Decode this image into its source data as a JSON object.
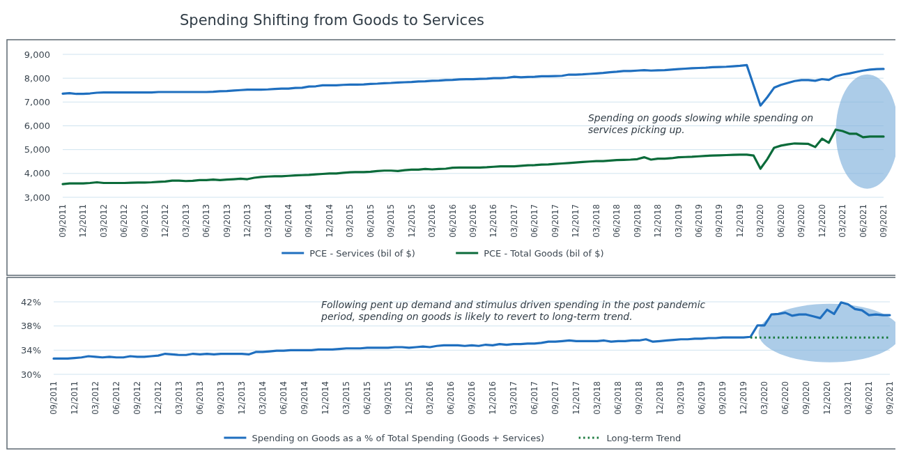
{
  "chart_data": [
    {
      "type": "line",
      "title": "Spending Shifting from Goods to Services",
      "categories": [
        "09/2011",
        null,
        null,
        "12/2011",
        null,
        null,
        "03/2012",
        null,
        null,
        "06/2012",
        null,
        null,
        "09/2012",
        null,
        null,
        "12/2012",
        null,
        null,
        "03/2013",
        null,
        null,
        "06/2013",
        null,
        null,
        "09/2013",
        null,
        null,
        "12/2013",
        null,
        null,
        "03/2014",
        null,
        null,
        "06/2014",
        null,
        null,
        "09/2014",
        null,
        null,
        "12/2014",
        null,
        null,
        "03/2015",
        null,
        null,
        "06/2015",
        null,
        null,
        "09/2015",
        null,
        null,
        "12/2015",
        null,
        null,
        "03/2016",
        null,
        null,
        "06/2016",
        null,
        null,
        "09/2016",
        null,
        null,
        "12/2016",
        null,
        null,
        "03/2017",
        null,
        null,
        "06/2017",
        null,
        null,
        "09/2017",
        null,
        null,
        "12/2017",
        null,
        null,
        "03/2018",
        null,
        null,
        "06/2018",
        null,
        null,
        "09/2018",
        null,
        null,
        "12/2018",
        null,
        null,
        "03/2019",
        null,
        null,
        "06/2019",
        null,
        null,
        "09/2019",
        null,
        null,
        "12/2019",
        null,
        null,
        "03/2020",
        null,
        null,
        "06/2020",
        null,
        null,
        "09/2020",
        null,
        null,
        "12/2020",
        null,
        null,
        "03/2021",
        null,
        null,
        "06/2021",
        null,
        null,
        "09/2021"
      ],
      "series": [
        {
          "name": "PCE - Services (bil of $)",
          "color": "#1f6fbf",
          "values": [
            7350,
            7370,
            7340,
            7340,
            7360,
            7390,
            7400,
            7400,
            7400,
            7400,
            7400,
            7400,
            7400,
            7400,
            7420,
            7420,
            7420,
            7420,
            7420,
            7420,
            7420,
            7420,
            7430,
            7450,
            7460,
            7480,
            7500,
            7520,
            7520,
            7520,
            7530,
            7550,
            7560,
            7560,
            7590,
            7600,
            7650,
            7660,
            7700,
            7700,
            7700,
            7720,
            7730,
            7730,
            7740,
            7760,
            7770,
            7790,
            7800,
            7820,
            7830,
            7840,
            7860,
            7870,
            7890,
            7900,
            7920,
            7930,
            7950,
            7960,
            7960,
            7970,
            7980,
            8000,
            8000,
            8020,
            8060,
            8040,
            8050,
            8060,
            8080,
            8080,
            8090,
            8100,
            8150,
            8150,
            8160,
            8180,
            8200,
            8220,
            8250,
            8270,
            8300,
            8300,
            8320,
            8340,
            8320,
            8330,
            8340,
            8360,
            8380,
            8400,
            8420,
            8430,
            8440,
            8460,
            8470,
            8480,
            8500,
            8520,
            8550,
            7700,
            6850,
            7200,
            7600,
            7720,
            7800,
            7880,
            7920,
            7920,
            7890,
            7960,
            7930,
            8080,
            8150,
            8200,
            8260,
            8320,
            8360,
            8380,
            8390
          ]
        },
        {
          "name": "PCE - Total Goods (bil of $)",
          "color": "#0b6b3a",
          "values": [
            3550,
            3580,
            3580,
            3580,
            3600,
            3630,
            3600,
            3600,
            3600,
            3600,
            3610,
            3620,
            3620,
            3630,
            3650,
            3660,
            3700,
            3700,
            3680,
            3690,
            3720,
            3720,
            3740,
            3720,
            3740,
            3760,
            3780,
            3760,
            3820,
            3850,
            3870,
            3880,
            3880,
            3900,
            3920,
            3930,
            3940,
            3960,
            3980,
            4000,
            4000,
            4030,
            4050,
            4060,
            4060,
            4070,
            4100,
            4120,
            4120,
            4100,
            4140,
            4160,
            4160,
            4190,
            4170,
            4190,
            4200,
            4240,
            4250,
            4250,
            4250,
            4250,
            4260,
            4280,
            4300,
            4300,
            4300,
            4320,
            4340,
            4350,
            4370,
            4380,
            4400,
            4420,
            4440,
            4460,
            4480,
            4500,
            4520,
            4520,
            4540,
            4560,
            4570,
            4580,
            4600,
            4680,
            4580,
            4620,
            4620,
            4640,
            4680,
            4690,
            4700,
            4720,
            4740,
            4750,
            4760,
            4770,
            4780,
            4790,
            4790,
            4750,
            4200,
            4600,
            5080,
            5170,
            5220,
            5260,
            5250,
            5240,
            5110,
            5460,
            5290,
            5840,
            5780,
            5670,
            5670,
            5520,
            5550,
            5550,
            5550
          ]
        }
      ],
      "ylim": [
        3000,
        9000
      ],
      "yticks": [
        {
          "value": 3000,
          "label": "3,000"
        },
        {
          "value": 4000,
          "label": "4,000"
        },
        {
          "value": 5000,
          "label": "5,000"
        },
        {
          "value": 6000,
          "label": "6,000"
        },
        {
          "value": 7000,
          "label": "7,000"
        },
        {
          "value": 8000,
          "label": "8,000"
        },
        {
          "value": 9000,
          "label": "9,000"
        }
      ],
      "grid": "y",
      "legend": "bottom",
      "annotations": [
        "Spending on goods slowing while spending on services picking up."
      ]
    },
    {
      "type": "line",
      "categories": [
        "09/2011",
        null,
        null,
        "12/2011",
        null,
        null,
        "03/2012",
        null,
        null,
        "06/2012",
        null,
        null,
        "09/2012",
        null,
        null,
        "12/2012",
        null,
        null,
        "03/2013",
        null,
        null,
        "06/2013",
        null,
        null,
        "09/2013",
        null,
        null,
        "12/2013",
        null,
        null,
        "03/2014",
        null,
        null,
        "06/2014",
        null,
        null,
        "09/2014",
        null,
        null,
        "12/2014",
        null,
        null,
        "03/2015",
        null,
        null,
        "06/2015",
        null,
        null,
        "09/2015",
        null,
        null,
        "12/2015",
        null,
        null,
        "03/2016",
        null,
        null,
        "06/2016",
        null,
        null,
        "09/2016",
        null,
        null,
        "12/2016",
        null,
        null,
        "03/2017",
        null,
        null,
        "06/2017",
        null,
        null,
        "09/2017",
        null,
        null,
        "12/2017",
        null,
        null,
        "03/2018",
        null,
        null,
        "06/2018",
        null,
        null,
        "09/2018",
        null,
        null,
        "12/2018",
        null,
        null,
        "03/2019",
        null,
        null,
        "06/2019",
        null,
        null,
        "09/2019",
        null,
        null,
        "12/2019",
        null,
        null,
        "03/2020",
        null,
        null,
        "06/2020",
        null,
        null,
        "09/2020",
        null,
        null,
        "12/2020",
        null,
        null,
        "03/2021",
        null,
        null,
        "06/2021",
        null,
        null,
        "09/2021"
      ],
      "series": [
        {
          "name": "Spending on Goods as a % of Total Spending (Goods + Services)",
          "color": "#1f6fbf",
          "line_style": "solid",
          "values": [
            32.6,
            32.6,
            32.6,
            32.7,
            32.8,
            33.0,
            32.9,
            32.8,
            32.9,
            32.8,
            32.8,
            33.0,
            32.9,
            32.9,
            33.0,
            33.1,
            33.4,
            33.3,
            33.2,
            33.2,
            33.4,
            33.3,
            33.4,
            33.3,
            33.4,
            33.4,
            33.4,
            33.4,
            33.3,
            33.7,
            33.7,
            33.8,
            33.9,
            33.9,
            34.0,
            34.0,
            34.0,
            34.0,
            34.1,
            34.1,
            34.1,
            34.2,
            34.3,
            34.3,
            34.3,
            34.4,
            34.4,
            34.4,
            34.4,
            34.5,
            34.5,
            34.4,
            34.5,
            34.6,
            34.5,
            34.7,
            34.8,
            34.8,
            34.8,
            34.7,
            34.8,
            34.7,
            34.9,
            34.8,
            35.0,
            34.9,
            35.0,
            35.0,
            35.1,
            35.1,
            35.2,
            35.4,
            35.4,
            35.5,
            35.6,
            35.5,
            35.5,
            35.5,
            35.5,
            35.6,
            35.4,
            35.5,
            35.5,
            35.6,
            35.6,
            35.8,
            35.4,
            35.5,
            35.6,
            35.7,
            35.8,
            35.8,
            35.9,
            35.9,
            36.0,
            36.0,
            36.1,
            36.1,
            36.1,
            36.1,
            36.2,
            38.1,
            38.1,
            39.9,
            40.0,
            40.2,
            39.7,
            39.9,
            39.9,
            39.6,
            39.3,
            40.7,
            40.0,
            41.9,
            41.6,
            40.8,
            40.6,
            39.8,
            39.9,
            39.8,
            39.8
          ]
        },
        {
          "name": "Long-term Trend",
          "color": "#1b7a3e",
          "line_style": "dotted",
          "values": [
            null,
            null,
            null,
            null,
            null,
            null,
            null,
            null,
            null,
            null,
            null,
            null,
            null,
            null,
            null,
            null,
            null,
            null,
            null,
            null,
            null,
            null,
            null,
            null,
            null,
            null,
            null,
            null,
            null,
            null,
            null,
            null,
            null,
            null,
            null,
            null,
            null,
            null,
            null,
            null,
            null,
            null,
            null,
            null,
            null,
            null,
            null,
            null,
            null,
            null,
            null,
            null,
            null,
            null,
            null,
            null,
            null,
            null,
            null,
            null,
            null,
            null,
            null,
            null,
            null,
            null,
            null,
            null,
            null,
            null,
            null,
            null,
            null,
            null,
            null,
            null,
            null,
            null,
            null,
            null,
            null,
            null,
            null,
            null,
            null,
            null,
            null,
            null,
            null,
            null,
            null,
            null,
            null,
            null,
            null,
            null,
            null,
            null,
            null,
            null,
            36.1,
            36.1,
            36.1,
            36.1,
            36.1,
            36.1,
            36.1,
            36.1,
            36.1,
            36.1,
            36.1,
            36.1,
            36.1,
            36.1,
            36.1,
            36.1,
            36.1,
            36.1,
            36.1,
            36.1,
            36.1
          ]
        }
      ],
      "ylim": [
        30,
        42
      ],
      "yticks": [
        {
          "value": 30,
          "label": "30%"
        },
        {
          "value": 34,
          "label": "34%"
        },
        {
          "value": 38,
          "label": "38%"
        },
        {
          "value": 42,
          "label": "42%"
        }
      ],
      "grid": "y",
      "legend": "bottom",
      "annotations": [
        "Following pent up demand and stimulus driven spending in the post pandemic period, spending on goods is likely to revert to long-term trend."
      ]
    }
  ]
}
